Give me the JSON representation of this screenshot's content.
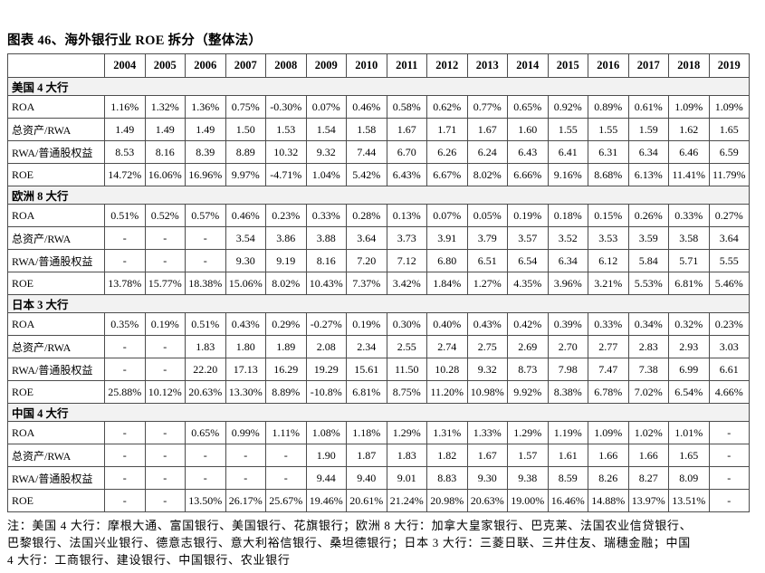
{
  "title": "图表 46、海外银行业 ROE 拆分（整体法）",
  "colors": {
    "section_bg": "#f2f2f2",
    "border": "#4d4d4d",
    "text": "#000000"
  },
  "chart_data": {
    "type": "table",
    "title": "图表 46、海外银行业 ROE 拆分（整体法）",
    "years": [
      "2004",
      "2005",
      "2006",
      "2007",
      "2008",
      "2009",
      "2010",
      "2011",
      "2012",
      "2013",
      "2014",
      "2015",
      "2016",
      "2017",
      "2018",
      "2019"
    ],
    "sections": [
      {
        "label": "美国 4 大行",
        "rows": [
          {
            "label": "ROA",
            "values": [
              "1.16%",
              "1.32%",
              "1.36%",
              "0.75%",
              "-0.30%",
              "0.07%",
              "0.46%",
              "0.58%",
              "0.62%",
              "0.77%",
              "0.65%",
              "0.92%",
              "0.89%",
              "0.61%",
              "1.09%",
              "1.09%"
            ]
          },
          {
            "label": "总资产/RWA",
            "values": [
              "1.49",
              "1.49",
              "1.49",
              "1.50",
              "1.53",
              "1.54",
              "1.58",
              "1.67",
              "1.71",
              "1.67",
              "1.60",
              "1.55",
              "1.55",
              "1.59",
              "1.62",
              "1.65"
            ]
          },
          {
            "label": "RWA/普通股权益",
            "values": [
              "8.53",
              "8.16",
              "8.39",
              "8.89",
              "10.32",
              "9.32",
              "7.44",
              "6.70",
              "6.26",
              "6.24",
              "6.43",
              "6.41",
              "6.31",
              "6.34",
              "6.46",
              "6.59"
            ]
          },
          {
            "label": "ROE",
            "values": [
              "14.72%",
              "16.06%",
              "16.96%",
              "9.97%",
              "-4.71%",
              "1.04%",
              "5.42%",
              "6.43%",
              "6.67%",
              "8.02%",
              "6.66%",
              "9.16%",
              "8.68%",
              "6.13%",
              "11.41%",
              "11.79%"
            ]
          }
        ]
      },
      {
        "label": "欧洲 8 大行",
        "rows": [
          {
            "label": "ROA",
            "values": [
              "0.51%",
              "0.52%",
              "0.57%",
              "0.46%",
              "0.23%",
              "0.33%",
              "0.28%",
              "0.13%",
              "0.07%",
              "0.05%",
              "0.19%",
              "0.18%",
              "0.15%",
              "0.26%",
              "0.33%",
              "0.27%"
            ]
          },
          {
            "label": "总资产/RWA",
            "values": [
              "-",
              "-",
              "-",
              "3.54",
              "3.86",
              "3.88",
              "3.64",
              "3.73",
              "3.91",
              "3.79",
              "3.57",
              "3.52",
              "3.53",
              "3.59",
              "3.58",
              "3.64"
            ]
          },
          {
            "label": "RWA/普通股权益",
            "values": [
              "-",
              "-",
              "-",
              "9.30",
              "9.19",
              "8.16",
              "7.20",
              "7.12",
              "6.80",
              "6.51",
              "6.54",
              "6.34",
              "6.12",
              "5.84",
              "5.71",
              "5.55"
            ]
          },
          {
            "label": "ROE",
            "values": [
              "13.78%",
              "15.77%",
              "18.38%",
              "15.06%",
              "8.02%",
              "10.43%",
              "7.37%",
              "3.42%",
              "1.84%",
              "1.27%",
              "4.35%",
              "3.96%",
              "3.21%",
              "5.53%",
              "6.81%",
              "5.46%"
            ]
          }
        ]
      },
      {
        "label": "日本 3 大行",
        "rows": [
          {
            "label": "ROA",
            "values": [
              "0.35%",
              "0.19%",
              "0.51%",
              "0.43%",
              "0.29%",
              "-0.27%",
              "0.19%",
              "0.30%",
              "0.40%",
              "0.43%",
              "0.42%",
              "0.39%",
              "0.33%",
              "0.34%",
              "0.32%",
              "0.23%"
            ]
          },
          {
            "label": "总资产/RWA",
            "values": [
              "-",
              "-",
              "1.83",
              "1.80",
              "1.89",
              "2.08",
              "2.34",
              "2.55",
              "2.74",
              "2.75",
              "2.69",
              "2.70",
              "2.77",
              "2.83",
              "2.93",
              "3.03"
            ]
          },
          {
            "label": "RWA/普通股权益",
            "values": [
              "-",
              "-",
              "22.20",
              "17.13",
              "16.29",
              "19.29",
              "15.61",
              "11.50",
              "10.28",
              "9.32",
              "8.73",
              "7.98",
              "7.47",
              "7.38",
              "6.99",
              "6.61"
            ]
          },
          {
            "label": "ROE",
            "values": [
              "25.88%",
              "10.12%",
              "20.63%",
              "13.30%",
              "8.89%",
              "-10.8%",
              "6.81%",
              "8.75%",
              "11.20%",
              "10.98%",
              "9.92%",
              "8.38%",
              "6.78%",
              "7.02%",
              "6.54%",
              "4.66%"
            ]
          }
        ]
      },
      {
        "label": "中国 4 大行",
        "rows": [
          {
            "label": "ROA",
            "values": [
              "-",
              "-",
              "0.65%",
              "0.99%",
              "1.11%",
              "1.08%",
              "1.18%",
              "1.29%",
              "1.31%",
              "1.33%",
              "1.29%",
              "1.19%",
              "1.09%",
              "1.02%",
              "1.01%",
              "-"
            ]
          },
          {
            "label": "总资产/RWA",
            "values": [
              "-",
              "-",
              "-",
              "-",
              "-",
              "1.90",
              "1.87",
              "1.83",
              "1.82",
              "1.67",
              "1.57",
              "1.61",
              "1.66",
              "1.66",
              "1.65",
              "-"
            ]
          },
          {
            "label": "RWA/普通股权益",
            "values": [
              "-",
              "-",
              "-",
              "-",
              "-",
              "9.44",
              "9.40",
              "9.01",
              "8.83",
              "9.30",
              "9.38",
              "8.59",
              "8.26",
              "8.27",
              "8.09",
              "-"
            ]
          },
          {
            "label": "ROE",
            "values": [
              "-",
              "-",
              "13.50%",
              "26.17%",
              "25.67%",
              "19.46%",
              "20.61%",
              "21.24%",
              "20.98%",
              "20.63%",
              "19.00%",
              "16.46%",
              "14.88%",
              "13.97%",
              "13.51%",
              "-"
            ]
          }
        ]
      }
    ]
  },
  "note": {
    "lines": [
      "注：美国 4 大行：摩根大通、富国银行、美国银行、花旗银行；欧洲 8 大行：加拿大皇家银行、巴克莱、法国农业信贷银行、",
      "巴黎银行、法国兴业银行、德意志银行、意大利裕信银行、桑坦德银行；日本 3 大行：三菱日联、三井住友、瑞穗金融；中国",
      "4 大行：工商银行、建设银行、中国银行、农业银行"
    ]
  }
}
